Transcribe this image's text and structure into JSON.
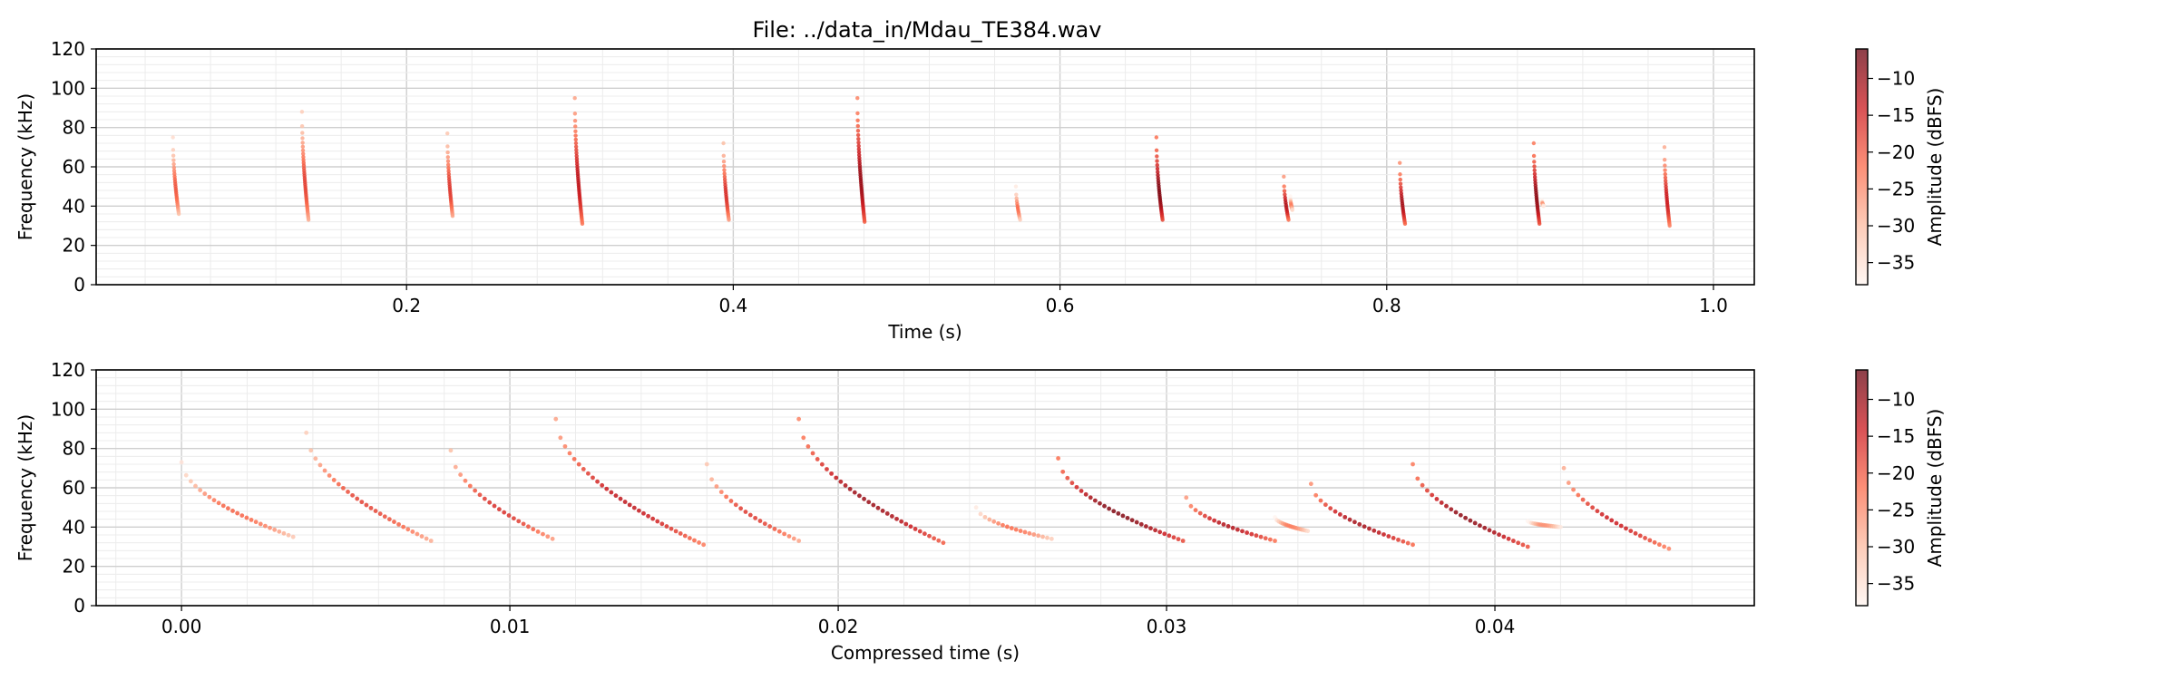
{
  "figure": {
    "title": "File: ../data_in/Mdau_TE384.wav"
  },
  "colors": {
    "cmap": [
      "#fff5f0",
      "#fcbba1",
      "#fb6a4a",
      "#cb181d",
      "#67000d"
    ],
    "grid": "#d6d6d6"
  },
  "chart_data": [
    {
      "type": "scatter",
      "title": "File: ../data_in/Mdau_TE384.wav",
      "xlabel": "Time (s)",
      "ylabel": "Frequency (kHz)",
      "xlim": [
        0.01,
        1.025
      ],
      "ylim": [
        0,
        120
      ],
      "xticks": [
        0.2,
        0.4,
        0.6,
        0.8,
        1.0
      ],
      "xtick_labels": [
        "0.2",
        "0.4",
        "0.6",
        "0.8",
        "1.0"
      ],
      "yticks": [
        0,
        20,
        40,
        60,
        80,
        100,
        120
      ],
      "ytick_labels": [
        "0",
        "20",
        "40",
        "60",
        "80",
        "100",
        "120"
      ],
      "grid": true,
      "colorbar": {
        "label": "Amplitude (dBFS)",
        "range": [
          -38,
          -6
        ],
        "ticks": [
          -35,
          -30,
          -25,
          -20,
          -15,
          -10
        ],
        "tick_labels": [
          "−35",
          "−30",
          "−25",
          "−20",
          "−15",
          "−10"
        ]
      },
      "calls": [
        {
          "t": 0.057,
          "dur": 0.0036,
          "fmax": 75,
          "fmin": 36,
          "amp": -20
        },
        {
          "t": 0.136,
          "dur": 0.004,
          "fmax": 88,
          "fmin": 33,
          "amp": -18
        },
        {
          "t": 0.225,
          "dur": 0.0032,
          "fmax": 77,
          "fmin": 35,
          "amp": -17
        },
        {
          "t": 0.303,
          "dur": 0.0046,
          "fmax": 95,
          "fmin": 31,
          "amp": -13
        },
        {
          "t": 0.394,
          "dur": 0.0033,
          "fmax": 72,
          "fmin": 33,
          "amp": -16
        },
        {
          "t": 0.476,
          "dur": 0.0044,
          "fmax": 95,
          "fmin": 32,
          "amp": -10
        },
        {
          "t": 0.573,
          "dur": 0.0026,
          "fmax": 50,
          "fmin": 33,
          "amp": -22
        },
        {
          "t": 0.659,
          "dur": 0.0038,
          "fmax": 75,
          "fmin": 33,
          "amp": -8
        },
        {
          "t": 0.737,
          "dur": 0.0029,
          "fmax": 55,
          "fmin": 33,
          "amp": -12
        },
        {
          "t": 0.741,
          "dur": 0.0012,
          "fmax": 45,
          "fmin": 38,
          "amp": -24
        },
        {
          "t": 0.808,
          "dur": 0.0032,
          "fmax": 62,
          "fmin": 31,
          "amp": -11
        },
        {
          "t": 0.89,
          "dur": 0.0035,
          "fmax": 72,
          "fmin": 31,
          "amp": -9
        },
        {
          "t": 0.895,
          "dur": 0.001,
          "fmax": 43,
          "fmin": 40,
          "amp": -26
        },
        {
          "t": 0.97,
          "dur": 0.0032,
          "fmax": 70,
          "fmin": 30,
          "amp": -14
        }
      ]
    },
    {
      "type": "scatter",
      "title": "",
      "xlabel": "Compressed time (s)",
      "ylabel": "Frequency (kHz)",
      "xlim": [
        -0.0026,
        0.0479
      ],
      "ylim": [
        0,
        120
      ],
      "xticks": [
        0.0,
        0.01,
        0.02,
        0.03,
        0.04
      ],
      "xtick_labels": [
        "0.00",
        "0.01",
        "0.02",
        "0.03",
        "0.04"
      ],
      "yticks": [
        0,
        20,
        40,
        60,
        80,
        100,
        120
      ],
      "ytick_labels": [
        "0",
        "20",
        "40",
        "60",
        "80",
        "100",
        "120"
      ],
      "grid": true,
      "colorbar": {
        "label": "Amplitude (dBFS)",
        "range": [
          -38,
          -6
        ],
        "ticks": [
          -35,
          -30,
          -25,
          -20,
          -15,
          -10
        ],
        "tick_labels": [
          "−35",
          "−30",
          "−25",
          "−20",
          "−15",
          "−10"
        ]
      },
      "calls": [
        {
          "t0": 0.0,
          "t1": 0.0034,
          "fmax": 73,
          "fmin": 35,
          "amp": -21
        },
        {
          "t0": 0.0038,
          "t1": 0.0076,
          "fmax": 88,
          "fmin": 33,
          "amp": -18
        },
        {
          "t0": 0.0082,
          "t1": 0.0113,
          "fmax": 79,
          "fmin": 34,
          "amp": -16
        },
        {
          "t0": 0.0114,
          "t1": 0.0159,
          "fmax": 95,
          "fmin": 31,
          "amp": -13
        },
        {
          "t0": 0.016,
          "t1": 0.0188,
          "fmax": 72,
          "fmin": 33,
          "amp": -17
        },
        {
          "t0": 0.0188,
          "t1": 0.0232,
          "fmax": 95,
          "fmin": 32,
          "amp": -10
        },
        {
          "t0": 0.0242,
          "t1": 0.0265,
          "fmax": 50,
          "fmin": 34,
          "amp": -22
        },
        {
          "t0": 0.0267,
          "t1": 0.0305,
          "fmax": 75,
          "fmin": 33,
          "amp": -8
        },
        {
          "t0": 0.0306,
          "t1": 0.0333,
          "fmax": 55,
          "fmin": 33,
          "amp": -12
        },
        {
          "t0": 0.0333,
          "t1": 0.0343,
          "fmax": 45,
          "fmin": 38,
          "amp": -24
        },
        {
          "t0": 0.0344,
          "t1": 0.0375,
          "fmax": 62,
          "fmin": 31,
          "amp": -11
        },
        {
          "t0": 0.0375,
          "t1": 0.041,
          "fmax": 72,
          "fmin": 30,
          "amp": -9
        },
        {
          "t0": 0.041,
          "t1": 0.042,
          "fmax": 43,
          "fmin": 40,
          "amp": -26
        },
        {
          "t0": 0.0421,
          "t1": 0.0453,
          "fmax": 70,
          "fmin": 29,
          "amp": -14
        }
      ]
    }
  ]
}
